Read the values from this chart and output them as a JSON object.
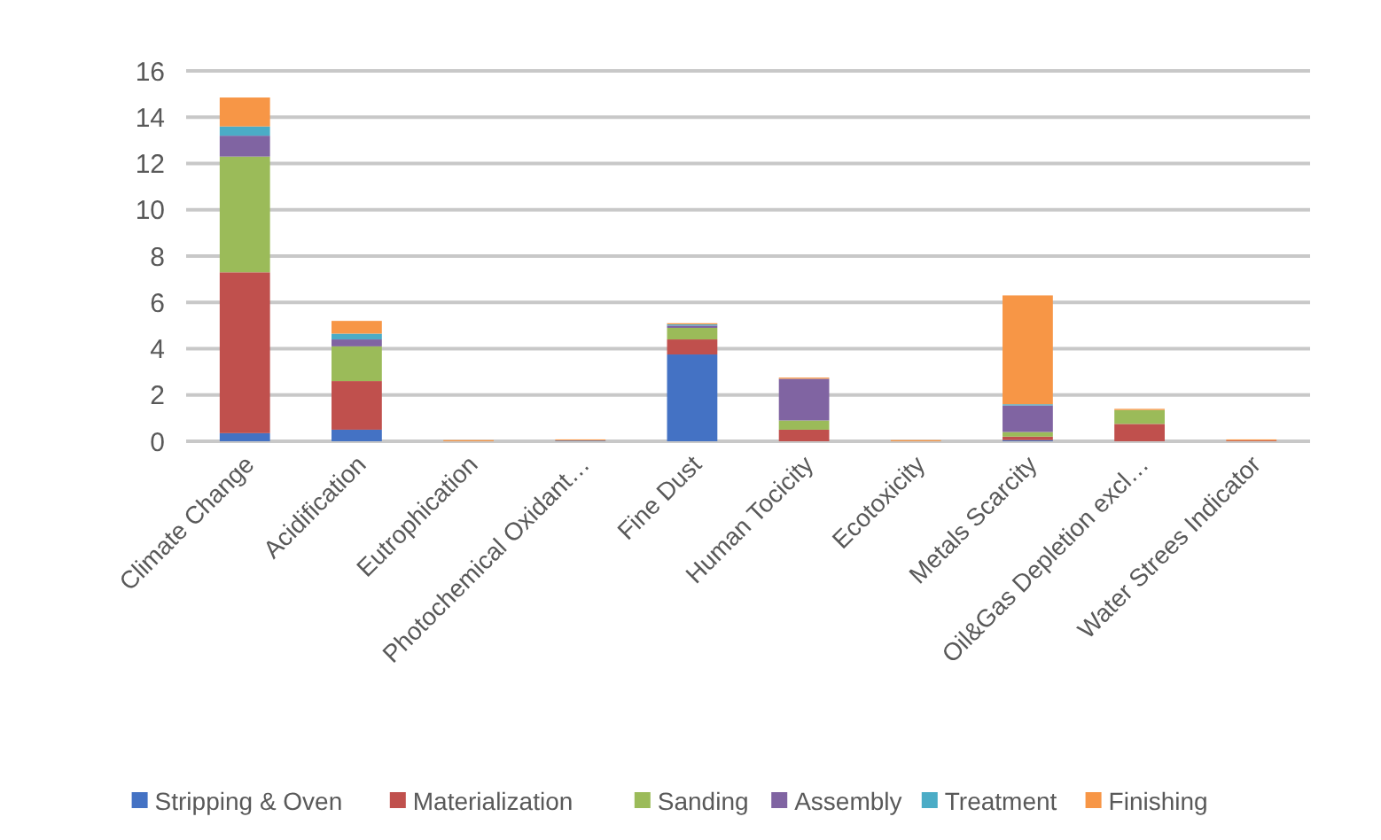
{
  "chart_data": {
    "type": "bar",
    "stacked": true,
    "categories": [
      "Climate Change",
      "Acidification",
      "Eutrophication",
      "Photochemical Oxidant…",
      "Fine Dust",
      "Human Tocicity",
      "Ecotoxicity",
      "Metals Scarcity",
      "Oil&Gas Depletion excl…",
      "Water Strees Indicator"
    ],
    "series": [
      {
        "name": "Stripping & Oven",
        "color": "#4472c4",
        "values": [
          0.35,
          0.5,
          0,
          0.03,
          3.75,
          0,
          0,
          0.05,
          0,
          0
        ]
      },
      {
        "name": "Materialization",
        "color": "#c0504d",
        "values": [
          6.95,
          2.1,
          0,
          0,
          0.65,
          0.5,
          0,
          0.15,
          0.75,
          0.03
        ]
      },
      {
        "name": "Sanding",
        "color": "#9bbb59",
        "values": [
          5.0,
          1.5,
          0,
          0,
          0.5,
          0.4,
          0,
          0.2,
          0.6,
          0
        ]
      },
      {
        "name": "Assembly",
        "color": "#8064a2",
        "values": [
          0.9,
          0.3,
          0,
          0,
          0.1,
          1.8,
          0,
          1.15,
          0,
          0
        ]
      },
      {
        "name": "Treatment",
        "color": "#4bacc6",
        "values": [
          0.4,
          0.25,
          0,
          0,
          0.05,
          0,
          0,
          0.05,
          0,
          0
        ]
      },
      {
        "name": "Finishing",
        "color": "#f79646",
        "values": [
          1.25,
          0.55,
          0.05,
          0.05,
          0.05,
          0.05,
          0.05,
          4.7,
          0.05,
          0.05
        ]
      }
    ],
    "ylim": [
      0,
      16
    ],
    "yticks": [
      0,
      2,
      4,
      6,
      8,
      10,
      12,
      14,
      16
    ],
    "grid": "y",
    "legend": "bottom"
  }
}
